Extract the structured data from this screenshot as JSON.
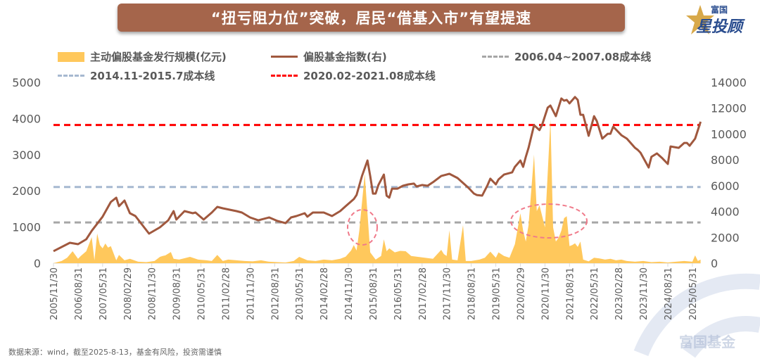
{
  "header": {
    "title": "“扭亏阻力位”突破，居民“借基入市”有望提速"
  },
  "logo": {
    "line1": "富国",
    "line2": "星投顾"
  },
  "watermark": "富国基金",
  "footer": "数据来源：wind，截至2025-8-13，基金有风险，投资需谨慎",
  "colors": {
    "issuance": "#ffc85c",
    "index": "#a0583e",
    "cost_2006": "#a6a6a6",
    "cost_2014": "#a6b8d0",
    "cost_2020": "#ff0000",
    "title_bg": "#a5654b",
    "highlight_ellipse": "#f07a8a"
  },
  "chart_data": {
    "type": "area+line",
    "title": "",
    "legend": {
      "issuance": "主动偏股基金发行规模(亿元)",
      "index": "偏股基金指数(右)",
      "cost_2006": "2006.04~2007.08成本线",
      "cost_2014": "2014.11-2015.7成本线",
      "cost_2020": "2020.02-2021.08成本线"
    },
    "legend_placement": "top",
    "grid": false,
    "left_axis": {
      "ylim": [
        0,
        5000
      ],
      "ticks": [
        "0",
        "1000",
        "2000",
        "3000",
        "4000",
        "5000"
      ]
    },
    "right_axis": {
      "ylim": [
        0,
        14000
      ],
      "ticks": [
        "0",
        "2000",
        "4000",
        "6000",
        "8000",
        "10000",
        "12000",
        "14000"
      ]
    },
    "x_ticks": [
      "2005/11/30",
      "2006/08/31",
      "2007/05/31",
      "2008/02/29",
      "2008/11/30",
      "2009/08/31",
      "2010/05/31",
      "2011/02/28",
      "2011/11/30",
      "2012/08/31",
      "2013/05/31",
      "2014/02/28",
      "2014/11/30",
      "2015/08/31",
      "2016/05/31",
      "2017/02/28",
      "2017/11/30",
      "2018/08/31",
      "2019/05/31",
      "2020/02/29",
      "2020/11/30",
      "2021/08/31",
      "2022/05/31",
      "2023/02/28",
      "2023/11/30",
      "2024/08/31",
      "2025/05/31"
    ],
    "cost_lines": {
      "cost_2006": 3150,
      "cost_2014": 5900,
      "cost_2020": 10700
    },
    "issuance": [
      [
        "2005-11",
        0
      ],
      [
        "2006-02",
        60
      ],
      [
        "2006-04",
        150
      ],
      [
        "2006-06",
        330
      ],
      [
        "2006-08",
        120
      ],
      [
        "2006-09",
        200
      ],
      [
        "2006-11",
        330
      ],
      [
        "2007-01",
        720
      ],
      [
        "2007-02",
        80
      ],
      [
        "2007-03",
        820
      ],
      [
        "2007-04",
        500
      ],
      [
        "2007-05",
        410
      ],
      [
        "2007-06",
        545
      ],
      [
        "2007-07",
        430
      ],
      [
        "2007-08",
        470
      ],
      [
        "2007-10",
        80
      ],
      [
        "2007-11",
        230
      ],
      [
        "2008-01",
        80
      ],
      [
        "2008-03",
        120
      ],
      [
        "2008-06",
        40
      ],
      [
        "2008-09",
        30
      ],
      [
        "2008-12",
        60
      ],
      [
        "2009-02",
        175
      ],
      [
        "2009-03",
        200
      ],
      [
        "2009-04",
        215
      ],
      [
        "2009-06",
        310
      ],
      [
        "2009-07",
        120
      ],
      [
        "2009-09",
        100
      ],
      [
        "2010-01",
        175
      ],
      [
        "2010-04",
        100
      ],
      [
        "2010-07",
        80
      ],
      [
        "2010-09",
        60
      ],
      [
        "2010-11",
        230
      ],
      [
        "2011-01",
        60
      ],
      [
        "2011-03",
        100
      ],
      [
        "2011-06",
        80
      ],
      [
        "2011-09",
        60
      ],
      [
        "2011-12",
        50
      ],
      [
        "2012-03",
        80
      ],
      [
        "2012-06",
        40
      ],
      [
        "2012-09",
        30
      ],
      [
        "2012-12",
        20
      ],
      [
        "2013-03",
        60
      ],
      [
        "2013-05",
        175
      ],
      [
        "2013-08",
        80
      ],
      [
        "2013-11",
        60
      ],
      [
        "2014-02",
        100
      ],
      [
        "2014-05",
        80
      ],
      [
        "2014-08",
        120
      ],
      [
        "2014-10",
        180
      ],
      [
        "2014-12",
        350
      ],
      [
        "2015-01",
        500
      ],
      [
        "2015-02",
        350
      ],
      [
        "2015-03",
        900
      ],
      [
        "2015-05",
        2470
      ],
      [
        "2015-07",
        300
      ],
      [
        "2015-09",
        100
      ],
      [
        "2015-11",
        200
      ],
      [
        "2015-12",
        660
      ],
      [
        "2016-01",
        330
      ],
      [
        "2016-02",
        410
      ],
      [
        "2016-04",
        300
      ],
      [
        "2016-06",
        340
      ],
      [
        "2016-08",
        330
      ],
      [
        "2016-10",
        200
      ],
      [
        "2016-12",
        180
      ],
      [
        "2017-03",
        150
      ],
      [
        "2017-06",
        120
      ],
      [
        "2017-09",
        370
      ],
      [
        "2017-10",
        250
      ],
      [
        "2017-11",
        200
      ],
      [
        "2017-12",
        910
      ],
      [
        "2018-01",
        100
      ],
      [
        "2018-03",
        80
      ],
      [
        "2018-05",
        1050
      ],
      [
        "2018-06",
        60
      ],
      [
        "2018-08",
        60
      ],
      [
        "2018-11",
        100
      ],
      [
        "2019-01",
        150
      ],
      [
        "2019-03",
        320
      ],
      [
        "2019-05",
        150
      ],
      [
        "2019-06",
        300
      ],
      [
        "2019-08",
        200
      ],
      [
        "2019-10",
        150
      ],
      [
        "2019-12",
        525
      ],
      [
        "2020-02",
        1380
      ],
      [
        "2020-03",
        900
      ],
      [
        "2020-04",
        600
      ],
      [
        "2020-05",
        1050
      ],
      [
        "2020-07",
        3000
      ],
      [
        "2020-08",
        1440
      ],
      [
        "2020-09",
        1600
      ],
      [
        "2020-10",
        1300
      ],
      [
        "2020-11",
        990
      ],
      [
        "2021-01",
        3970
      ],
      [
        "2021-02",
        990
      ],
      [
        "2021-03",
        600
      ],
      [
        "2021-04",
        700
      ],
      [
        "2021-05",
        900
      ],
      [
        "2021-06",
        1245
      ],
      [
        "2021-07",
        1300
      ],
      [
        "2021-08",
        470
      ],
      [
        "2021-09",
        500
      ],
      [
        "2021-10",
        550
      ],
      [
        "2021-11",
        450
      ],
      [
        "2021-12",
        600
      ],
      [
        "2022-01",
        100
      ],
      [
        "2022-03",
        50
      ],
      [
        "2022-05",
        150
      ],
      [
        "2022-07",
        130
      ],
      [
        "2022-09",
        100
      ],
      [
        "2022-11",
        120
      ],
      [
        "2023-01",
        80
      ],
      [
        "2023-03",
        100
      ],
      [
        "2023-05",
        60
      ],
      [
        "2023-08",
        40
      ],
      [
        "2023-11",
        60
      ],
      [
        "2024-02",
        30
      ],
      [
        "2024-05",
        40
      ],
      [
        "2024-08",
        20
      ],
      [
        "2024-11",
        40
      ],
      [
        "2025-02",
        60
      ],
      [
        "2025-05",
        40
      ],
      [
        "2025-06",
        215
      ],
      [
        "2025-07",
        60
      ],
      [
        "2025-08",
        100
      ]
    ],
    "index": [
      [
        "2005-11",
        930
      ],
      [
        "2006-05",
        1580
      ],
      [
        "2006-08",
        1470
      ],
      [
        "2006-11",
        1850
      ],
      [
        "2007-01",
        2500
      ],
      [
        "2007-05",
        3600
      ],
      [
        "2007-08",
        4740
      ],
      [
        "2007-10",
        5070
      ],
      [
        "2007-11",
        4410
      ],
      [
        "2008-01",
        4850
      ],
      [
        "2008-03",
        3870
      ],
      [
        "2008-05",
        3650
      ],
      [
        "2008-08",
        2830
      ],
      [
        "2008-10",
        2290
      ],
      [
        "2009-02",
        2780
      ],
      [
        "2009-05",
        3320
      ],
      [
        "2009-07",
        4030
      ],
      [
        "2009-08",
        3380
      ],
      [
        "2009-11",
        4030
      ],
      [
        "2010-02",
        3870
      ],
      [
        "2010-03",
        3920
      ],
      [
        "2010-06",
        3380
      ],
      [
        "2010-09",
        3920
      ],
      [
        "2010-11",
        4360
      ],
      [
        "2011-01",
        4250
      ],
      [
        "2011-06",
        4030
      ],
      [
        "2011-08",
        3920
      ],
      [
        "2011-11",
        3540
      ],
      [
        "2012-02",
        3320
      ],
      [
        "2012-06",
        3540
      ],
      [
        "2012-09",
        3270
      ],
      [
        "2012-12",
        3100
      ],
      [
        "2013-02",
        3540
      ],
      [
        "2013-04",
        3650
      ],
      [
        "2013-07",
        3870
      ],
      [
        "2013-08",
        3600
      ],
      [
        "2013-10",
        3920
      ],
      [
        "2014-02",
        3920
      ],
      [
        "2014-05",
        3650
      ],
      [
        "2014-08",
        4030
      ],
      [
        "2014-10",
        4410
      ],
      [
        "2015-01",
        4960
      ],
      [
        "2015-02",
        5280
      ],
      [
        "2015-04",
        6750
      ],
      [
        "2015-06",
        7950
      ],
      [
        "2015-07",
        6750
      ],
      [
        "2015-08",
        5390
      ],
      [
        "2015-09",
        5390
      ],
      [
        "2015-10",
        6050
      ],
      [
        "2015-12",
        6860
      ],
      [
        "2016-01",
        5230
      ],
      [
        "2016-02",
        5070
      ],
      [
        "2016-03",
        5770
      ],
      [
        "2016-05",
        5770
      ],
      [
        "2016-07",
        5990
      ],
      [
        "2016-09",
        6100
      ],
      [
        "2016-11",
        6160
      ],
      [
        "2016-12",
        5940
      ],
      [
        "2017-02",
        6050
      ],
      [
        "2017-04",
        5990
      ],
      [
        "2017-06",
        6270
      ],
      [
        "2017-09",
        6750
      ],
      [
        "2017-12",
        6920
      ],
      [
        "2018-03",
        6590
      ],
      [
        "2018-05",
        6210
      ],
      [
        "2018-07",
        5830
      ],
      [
        "2018-09",
        5390
      ],
      [
        "2018-10",
        5280
      ],
      [
        "2018-12",
        5230
      ],
      [
        "2019-02",
        6050
      ],
      [
        "2019-03",
        6540
      ],
      [
        "2019-05",
        6100
      ],
      [
        "2019-06",
        6480
      ],
      [
        "2019-08",
        6860
      ],
      [
        "2019-11",
        7030
      ],
      [
        "2019-12",
        7460
      ],
      [
        "2020-02",
        7950
      ],
      [
        "2020-03",
        7460
      ],
      [
        "2020-04",
        8230
      ],
      [
        "2020-05",
        8930
      ],
      [
        "2020-07",
        10680
      ],
      [
        "2020-09",
        10300
      ],
      [
        "2020-10",
        10730
      ],
      [
        "2020-12",
        12040
      ],
      [
        "2021-01",
        12200
      ],
      [
        "2021-03",
        11380
      ],
      [
        "2021-05",
        12750
      ],
      [
        "2021-06",
        12580
      ],
      [
        "2021-07",
        12640
      ],
      [
        "2021-08",
        12370
      ],
      [
        "2021-10",
        12860
      ],
      [
        "2021-11",
        12640
      ],
      [
        "2021-12",
        11490
      ],
      [
        "2022-01",
        11490
      ],
      [
        "2022-03",
        9860
      ],
      [
        "2022-05",
        11380
      ],
      [
        "2022-06",
        11000
      ],
      [
        "2022-08",
        9640
      ],
      [
        "2022-10",
        10020
      ],
      [
        "2022-11",
        10020
      ],
      [
        "2022-12",
        10570
      ],
      [
        "2023-03",
        9910
      ],
      [
        "2023-05",
        9640
      ],
      [
        "2023-08",
        8930
      ],
      [
        "2023-09",
        8770
      ],
      [
        "2023-10",
        8550
      ],
      [
        "2024-01",
        7410
      ],
      [
        "2024-02",
        8230
      ],
      [
        "2024-04",
        8500
      ],
      [
        "2024-06",
        8120
      ],
      [
        "2024-08",
        7680
      ],
      [
        "2024-09",
        9040
      ],
      [
        "2024-12",
        8930
      ],
      [
        "2025-02",
        9310
      ],
      [
        "2025-03",
        9310
      ],
      [
        "2025-04",
        9090
      ],
      [
        "2025-06",
        9640
      ],
      [
        "2025-08",
        10950
      ]
    ]
  }
}
